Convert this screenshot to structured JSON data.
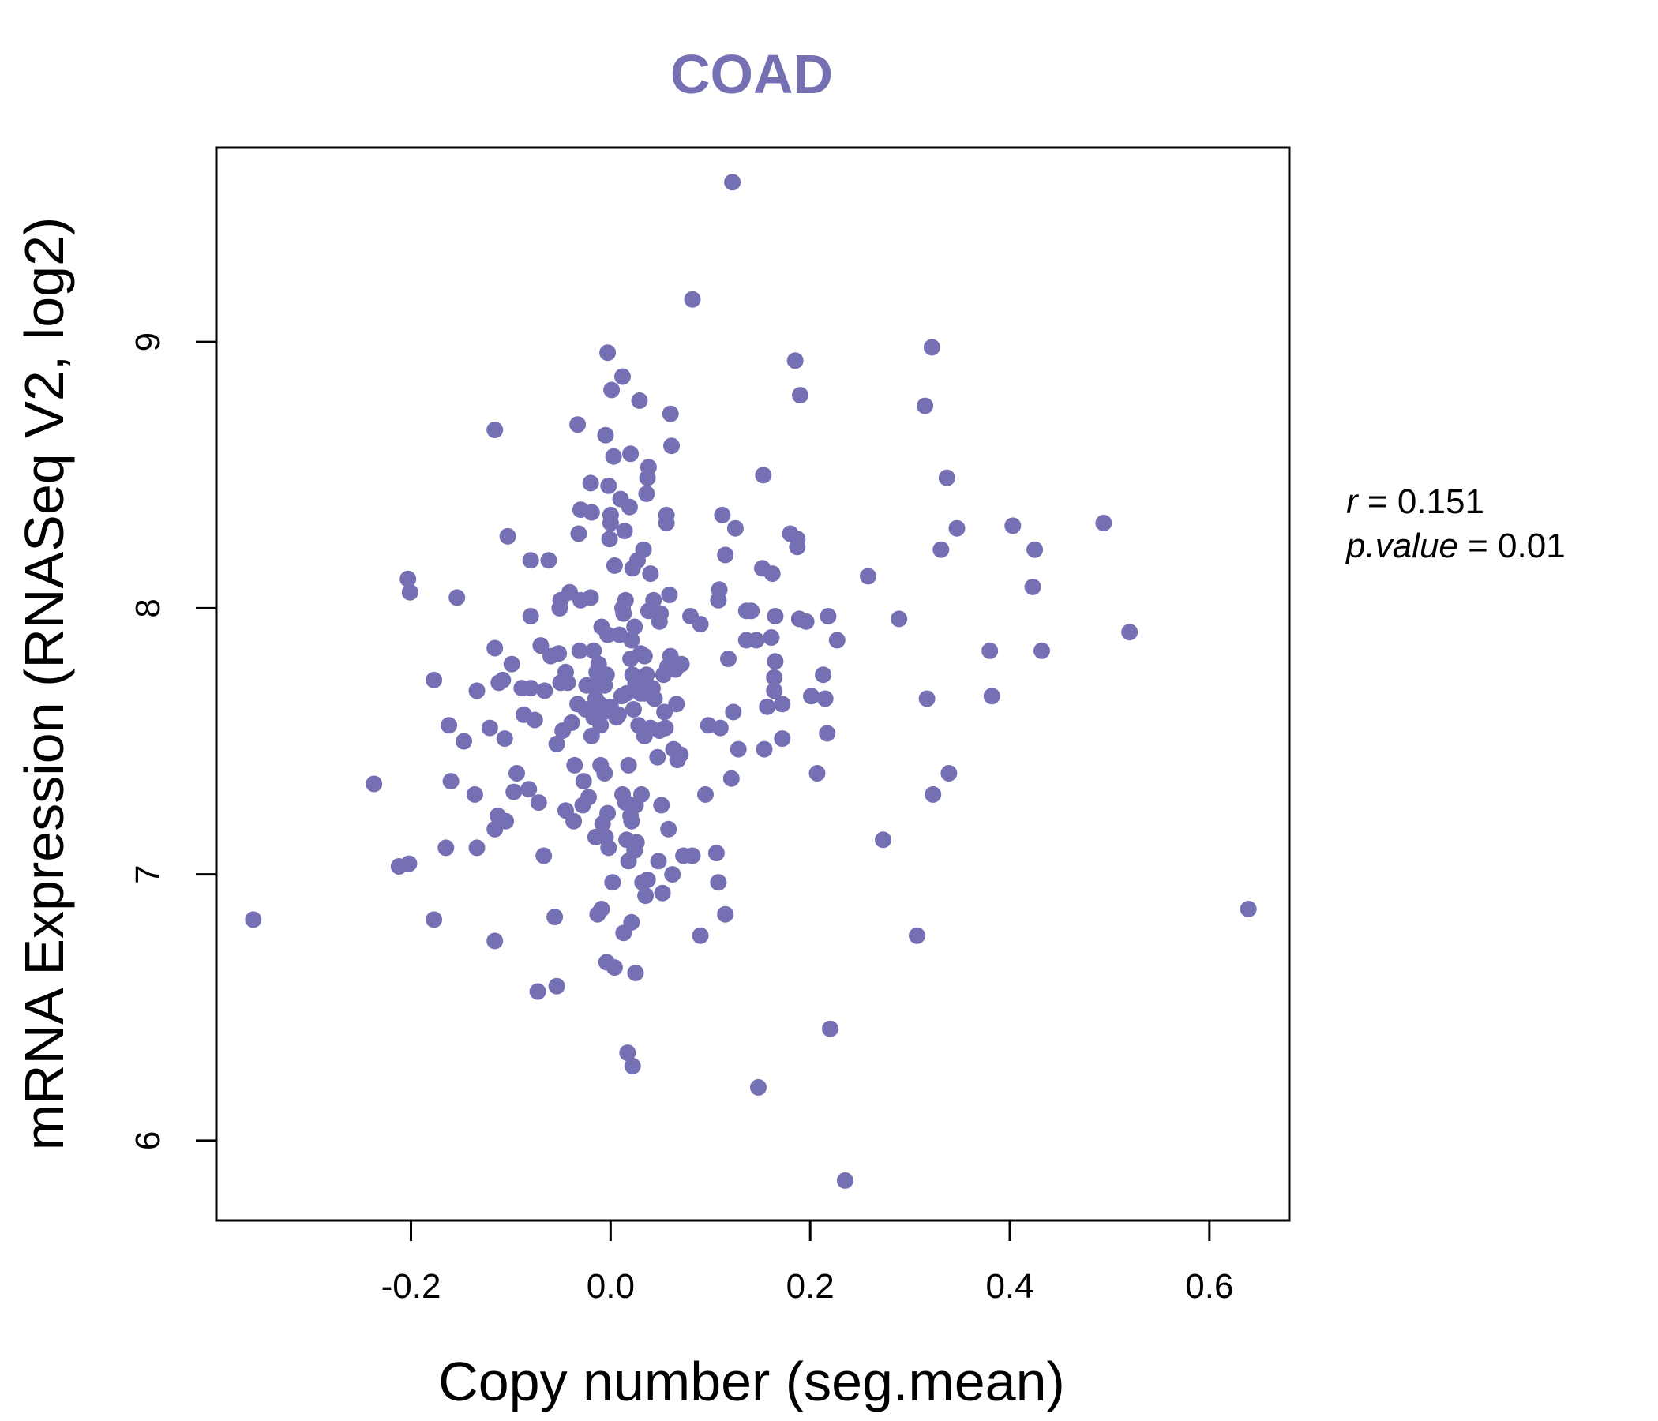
{
  "chart_data": {
    "type": "scatter",
    "title": "COAD",
    "xlabel": "Copy number (seg.mean)",
    "ylabel": "mRNA Expression (RNASeq V2, log2)",
    "xlim": [
      -0.395,
      0.68
    ],
    "ylim": [
      5.7,
      9.73
    ],
    "xticks": [
      "-0.2",
      "0.0",
      "0.2",
      "0.4",
      "0.6"
    ],
    "yticks": [
      "6",
      "7",
      "8",
      "9"
    ],
    "grid": false,
    "colors": {
      "point": "#7570b3",
      "title": "#7570b3"
    },
    "stats": {
      "r_symbol": "r",
      "r_value": "0.151",
      "p_symbol": "p.value",
      "p_value": "0.01"
    },
    "points": [
      [
        -0.358,
        6.83
      ],
      [
        -0.237,
        7.34
      ],
      [
        -0.212,
        7.03
      ],
      [
        -0.202,
        7.04
      ],
      [
        -0.203,
        8.11
      ],
      [
        -0.201,
        8.06
      ],
      [
        -0.177,
        6.83
      ],
      [
        -0.177,
        7.73
      ],
      [
        -0.165,
        7.1
      ],
      [
        -0.162,
        7.56
      ],
      [
        -0.16,
        7.35
      ],
      [
        -0.154,
        8.04
      ],
      [
        -0.147,
        7.5
      ],
      [
        -0.136,
        7.3
      ],
      [
        -0.134,
        7.69
      ],
      [
        -0.134,
        7.1
      ],
      [
        -0.121,
        7.55
      ],
      [
        -0.116,
        7.85
      ],
      [
        -0.116,
        6.75
      ],
      [
        -0.116,
        8.67
      ],
      [
        -0.116,
        7.17
      ],
      [
        -0.113,
        7.22
      ],
      [
        -0.112,
        7.72
      ],
      [
        -0.108,
        7.73
      ],
      [
        -0.106,
        7.51
      ],
      [
        -0.105,
        7.2
      ],
      [
        -0.103,
        8.27
      ],
      [
        -0.099,
        7.79
      ],
      [
        -0.097,
        7.31
      ],
      [
        -0.094,
        7.38
      ],
      [
        -0.089,
        7.7
      ],
      [
        -0.087,
        7.6
      ],
      [
        -0.082,
        7.32
      ],
      [
        -0.08,
        7.7
      ],
      [
        -0.08,
        7.97
      ],
      [
        -0.08,
        8.18
      ],
      [
        -0.076,
        7.58
      ],
      [
        -0.073,
        6.56
      ],
      [
        -0.072,
        7.27
      ],
      [
        -0.07,
        7.86
      ],
      [
        -0.067,
        7.07
      ],
      [
        -0.066,
        7.69
      ],
      [
        -0.062,
        8.18
      ],
      [
        -0.06,
        7.82
      ],
      [
        -0.056,
        6.84
      ],
      [
        -0.054,
        7.49
      ],
      [
        -0.054,
        6.58
      ],
      [
        -0.052,
        7.83
      ],
      [
        -0.051,
        8.0
      ],
      [
        -0.05,
        8.03
      ],
      [
        -0.05,
        7.72
      ],
      [
        -0.048,
        7.54
      ],
      [
        -0.045,
        7.76
      ],
      [
        -0.045,
        7.24
      ],
      [
        -0.043,
        7.72
      ],
      [
        -0.041,
        8.06
      ],
      [
        -0.039,
        7.57
      ],
      [
        -0.037,
        7.2
      ],
      [
        -0.036,
        7.41
      ],
      [
        -0.033,
        8.69
      ],
      [
        -0.033,
        7.64
      ],
      [
        -0.032,
        8.28
      ],
      [
        -0.031,
        7.84
      ],
      [
        -0.03,
        8.03
      ],
      [
        -0.03,
        8.37
      ],
      [
        -0.028,
        7.26
      ],
      [
        -0.027,
        7.35
      ],
      [
        -0.025,
        7.62
      ],
      [
        -0.024,
        7.71
      ],
      [
        -0.022,
        7.29
      ],
      [
        -0.02,
        8.04
      ],
      [
        -0.02,
        8.47
      ],
      [
        -0.019,
        8.36
      ],
      [
        -0.019,
        7.52
      ],
      [
        -0.018,
        7.71
      ],
      [
        -0.017,
        7.59
      ],
      [
        -0.017,
        7.84
      ],
      [
        -0.016,
        7.61
      ],
      [
        -0.015,
        7.66
      ],
      [
        -0.015,
        7.14
      ],
      [
        -0.014,
        7.76
      ],
      [
        -0.014,
        7.63
      ],
      [
        -0.013,
        6.85
      ],
      [
        -0.012,
        7.79
      ],
      [
        -0.011,
        7.64
      ],
      [
        -0.01,
        7.41
      ],
      [
        -0.01,
        7.56
      ],
      [
        -0.009,
        6.87
      ],
      [
        -0.009,
        7.93
      ],
      [
        -0.008,
        7.19
      ],
      [
        -0.007,
        7.61
      ],
      [
        -0.006,
        7.71
      ],
      [
        -0.006,
        7.38
      ],
      [
        -0.005,
        8.65
      ],
      [
        -0.005,
        7.14
      ],
      [
        -0.004,
        7.75
      ],
      [
        -0.004,
        6.67
      ],
      [
        -0.003,
        7.9
      ],
      [
        -0.003,
        7.23
      ],
      [
        -0.003,
        8.96
      ],
      [
        -0.002,
        8.46
      ],
      [
        -0.002,
        7.1
      ],
      [
        -0.001,
        8.26
      ],
      [
        0.0,
        8.35
      ],
      [
        0.0,
        8.32
      ],
      [
        0.0,
        7.63
      ],
      [
        0.001,
        8.82
      ],
      [
        0.002,
        6.97
      ],
      [
        0.003,
        8.57
      ],
      [
        0.004,
        8.16
      ],
      [
        0.004,
        6.65
      ],
      [
        0.006,
        7.59
      ],
      [
        0.008,
        7.6
      ],
      [
        0.009,
        7.9
      ],
      [
        0.01,
        8.41
      ],
      [
        0.011,
        7.67
      ],
      [
        0.012,
        8.0
      ],
      [
        0.012,
        7.3
      ],
      [
        0.012,
        8.87
      ],
      [
        0.013,
        7.98
      ],
      [
        0.013,
        6.78
      ],
      [
        0.014,
        8.29
      ],
      [
        0.015,
        8.03
      ],
      [
        0.015,
        7.27
      ],
      [
        0.016,
        7.68
      ],
      [
        0.016,
        7.13
      ],
      [
        0.017,
        6.33
      ],
      [
        0.018,
        7.41
      ],
      [
        0.018,
        7.05
      ],
      [
        0.019,
        8.38
      ],
      [
        0.02,
        7.22
      ],
      [
        0.02,
        8.58
      ],
      [
        0.02,
        7.81
      ],
      [
        0.021,
        6.82
      ],
      [
        0.021,
        7.88
      ],
      [
        0.021,
        7.2
      ],
      [
        0.022,
        8.15
      ],
      [
        0.022,
        6.28
      ],
      [
        0.022,
        7.75
      ],
      [
        0.023,
        7.62
      ],
      [
        0.024,
        7.93
      ],
      [
        0.024,
        7.09
      ],
      [
        0.025,
        7.72
      ],
      [
        0.025,
        7.26
      ],
      [
        0.025,
        6.63
      ],
      [
        0.026,
        7.12
      ],
      [
        0.027,
        8.18
      ],
      [
        0.028,
        7.71
      ],
      [
        0.028,
        7.56
      ],
      [
        0.029,
        8.78
      ],
      [
        0.03,
        7.83
      ],
      [
        0.03,
        7.68
      ],
      [
        0.031,
        7.3
      ],
      [
        0.032,
        6.97
      ],
      [
        0.033,
        8.22
      ],
      [
        0.034,
        7.82
      ],
      [
        0.034,
        7.52
      ],
      [
        0.034,
        7.68
      ],
      [
        0.035,
        6.92
      ],
      [
        0.036,
        8.43
      ],
      [
        0.036,
        7.75
      ],
      [
        0.037,
        8.49
      ],
      [
        0.037,
        6.98
      ],
      [
        0.038,
        8.53
      ],
      [
        0.038,
        7.99
      ],
      [
        0.04,
        8.13
      ],
      [
        0.04,
        7.55
      ],
      [
        0.042,
        7.7
      ],
      [
        0.043,
        8.03
      ],
      [
        0.044,
        7.66
      ],
      [
        0.047,
        7.44
      ],
      [
        0.048,
        7.05
      ],
      [
        0.049,
        7.54
      ],
      [
        0.049,
        7.95
      ],
      [
        0.05,
        7.98
      ],
      [
        0.051,
        7.26
      ],
      [
        0.052,
        6.93
      ],
      [
        0.053,
        7.75
      ],
      [
        0.054,
        7.61
      ],
      [
        0.055,
        7.55
      ],
      [
        0.056,
        8.35
      ],
      [
        0.056,
        8.32
      ],
      [
        0.057,
        7.78
      ],
      [
        0.058,
        7.17
      ],
      [
        0.059,
        8.05
      ],
      [
        0.06,
        7.82
      ],
      [
        0.06,
        8.73
      ],
      [
        0.061,
        8.61
      ],
      [
        0.062,
        7.0
      ],
      [
        0.063,
        7.47
      ],
      [
        0.065,
        7.77
      ],
      [
        0.066,
        7.64
      ],
      [
        0.067,
        7.43
      ],
      [
        0.07,
        7.45
      ],
      [
        0.071,
        7.79
      ],
      [
        0.073,
        7.07
      ],
      [
        0.08,
        7.97
      ],
      [
        0.082,
        7.07
      ],
      [
        0.082,
        9.16
      ],
      [
        0.09,
        6.77
      ],
      [
        0.09,
        7.94
      ],
      [
        0.095,
        7.3
      ],
      [
        0.098,
        7.56
      ],
      [
        0.106,
        7.08
      ],
      [
        0.108,
        6.97
      ],
      [
        0.108,
        8.03
      ],
      [
        0.109,
        8.07
      ],
      [
        0.11,
        7.55
      ],
      [
        0.112,
        8.35
      ],
      [
        0.115,
        8.2
      ],
      [
        0.115,
        6.85
      ],
      [
        0.118,
        7.81
      ],
      [
        0.121,
        7.36
      ],
      [
        0.122,
        9.6
      ],
      [
        0.123,
        7.61
      ],
      [
        0.125,
        8.3
      ],
      [
        0.128,
        7.47
      ],
      [
        0.136,
        7.88
      ],
      [
        0.136,
        7.99
      ],
      [
        0.141,
        7.99
      ],
      [
        0.146,
        7.88
      ],
      [
        0.148,
        6.2
      ],
      [
        0.152,
        8.15
      ],
      [
        0.153,
        8.5
      ],
      [
        0.154,
        7.47
      ],
      [
        0.157,
        7.63
      ],
      [
        0.161,
        7.89
      ],
      [
        0.162,
        8.13
      ],
      [
        0.164,
        7.74
      ],
      [
        0.164,
        7.69
      ],
      [
        0.165,
        7.8
      ],
      [
        0.165,
        7.97
      ],
      [
        0.172,
        7.64
      ],
      [
        0.172,
        7.51
      ],
      [
        0.18,
        8.28
      ],
      [
        0.185,
        8.93
      ],
      [
        0.187,
        8.26
      ],
      [
        0.187,
        8.23
      ],
      [
        0.189,
        7.96
      ],
      [
        0.19,
        8.8
      ],
      [
        0.196,
        7.95
      ],
      [
        0.201,
        7.67
      ],
      [
        0.207,
        7.38
      ],
      [
        0.213,
        7.75
      ],
      [
        0.215,
        7.66
      ],
      [
        0.217,
        7.53
      ],
      [
        0.218,
        7.97
      ],
      [
        0.22,
        6.42
      ],
      [
        0.227,
        7.88
      ],
      [
        0.235,
        5.85
      ],
      [
        0.258,
        8.12
      ],
      [
        0.273,
        7.13
      ],
      [
        0.289,
        7.96
      ],
      [
        0.307,
        6.77
      ],
      [
        0.315,
        8.76
      ],
      [
        0.317,
        7.66
      ],
      [
        0.322,
        8.98
      ],
      [
        0.323,
        7.3
      ],
      [
        0.331,
        8.22
      ],
      [
        0.337,
        8.49
      ],
      [
        0.339,
        7.38
      ],
      [
        0.347,
        8.3
      ],
      [
        0.38,
        7.84
      ],
      [
        0.382,
        7.67
      ],
      [
        0.403,
        8.31
      ],
      [
        0.423,
        8.08
      ],
      [
        0.425,
        8.22
      ],
      [
        0.432,
        7.84
      ],
      [
        0.494,
        8.32
      ],
      [
        0.52,
        7.91
      ],
      [
        0.639,
        6.87
      ]
    ]
  }
}
